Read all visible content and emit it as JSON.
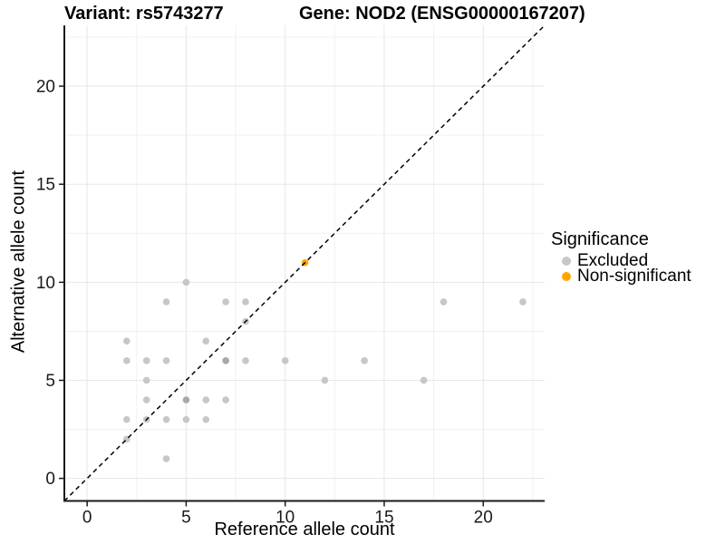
{
  "chart_data": {
    "type": "scatter",
    "titles": {
      "left": "Variant: rs5743277",
      "right": "Gene: NOD2 (ENSG00000167207)"
    },
    "xlabel": "Reference allele count",
    "ylabel": "Alternative allele count",
    "xlim": [
      -1.15,
      23.1
    ],
    "ylim": [
      -1.15,
      23.1
    ],
    "xticks": [
      0,
      5,
      10,
      15,
      20
    ],
    "yticks": [
      0,
      5,
      10,
      15,
      20
    ],
    "minor_xticks": [
      2.5,
      7.5,
      12.5,
      17.5,
      22.5
    ],
    "minor_yticks": [
      2.5,
      7.5,
      12.5,
      17.5,
      22.5
    ],
    "grid": "major+minor",
    "identity_line": {
      "style": "dashed",
      "from": [
        -1.15,
        -1.15
      ],
      "to": [
        23.1,
        23.1
      ]
    },
    "legend": {
      "title": "Significance",
      "position": "right",
      "items": [
        {
          "label": "Excluded",
          "color": "#c7c7c7"
        },
        {
          "label": "Non-significant",
          "color": "#ffa500"
        }
      ]
    },
    "series": [
      {
        "name": "Excluded",
        "color": "#c7c7c7",
        "points": [
          [
            2,
            2
          ],
          [
            2,
            3
          ],
          [
            2,
            6
          ],
          [
            2,
            7
          ],
          [
            3,
            3
          ],
          [
            3,
            4
          ],
          [
            3,
            5
          ],
          [
            3,
            6
          ],
          [
            4,
            1
          ],
          [
            4,
            3
          ],
          [
            4,
            6
          ],
          [
            4,
            9
          ],
          [
            5,
            3
          ],
          [
            5,
            4
          ],
          [
            5,
            10
          ],
          [
            6,
            3
          ],
          [
            6,
            4
          ],
          [
            6,
            7
          ],
          [
            7,
            4
          ],
          [
            7,
            6
          ],
          [
            7,
            9
          ],
          [
            8,
            6
          ],
          [
            8,
            8
          ],
          [
            8,
            9
          ],
          [
            10,
            6
          ],
          [
            12,
            5
          ],
          [
            14,
            6
          ],
          [
            17,
            5
          ],
          [
            18,
            9
          ],
          [
            22,
            9
          ]
        ],
        "overplotted_points": [
          [
            5,
            4
          ],
          [
            7,
            6
          ]
        ]
      },
      {
        "name": "Non-significant",
        "color": "#ffa500",
        "points": [
          [
            11,
            11
          ]
        ]
      }
    ],
    "colors": {
      "grid_major": "#e7e7e7",
      "grid_minor": "#f1f1f1",
      "axis_line": "#1a1a1a",
      "tick_text": "#1a1a1a",
      "point_overlap": "#a9a9a9",
      "identity_line": "#000000",
      "background": "#ffffff"
    }
  }
}
